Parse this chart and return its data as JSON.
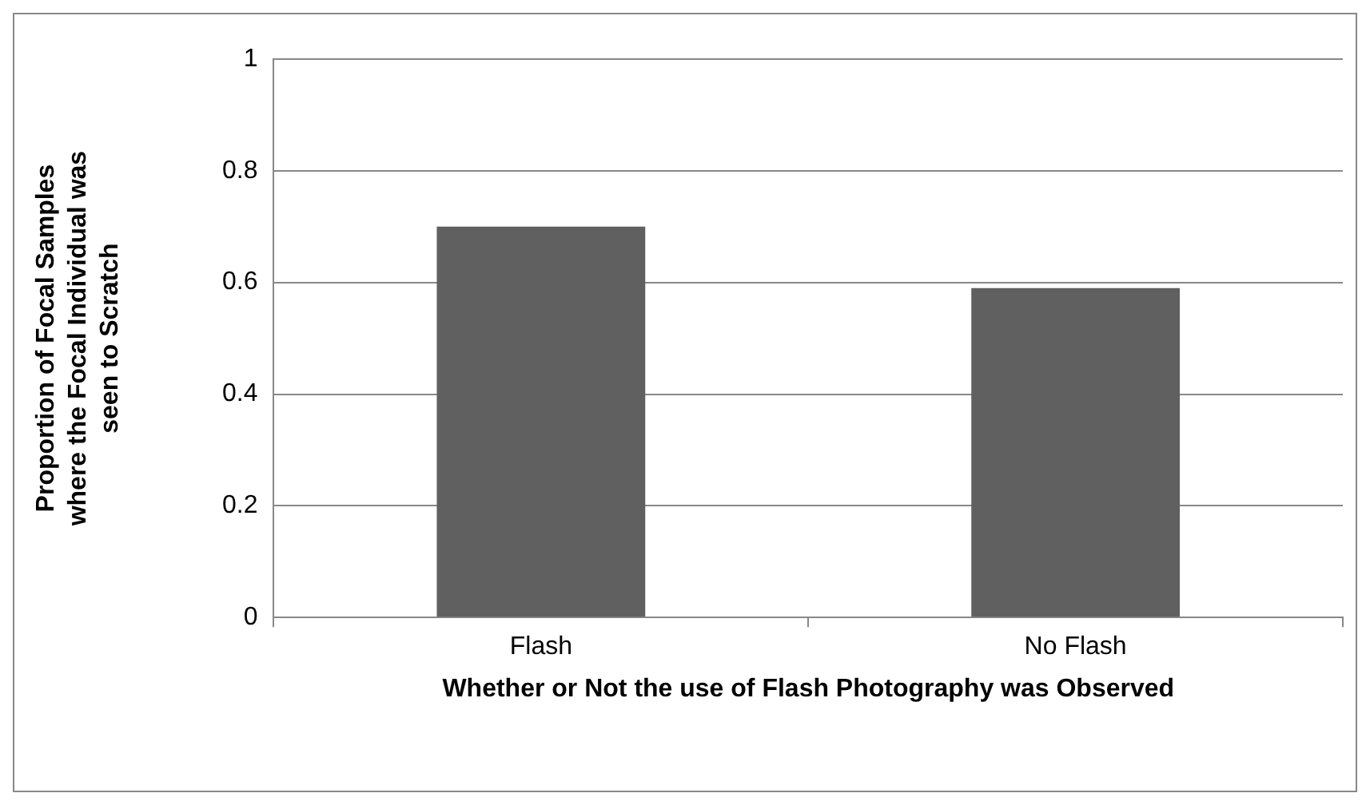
{
  "chart_data": {
    "type": "bar",
    "categories": [
      "Flash",
      "No Flash"
    ],
    "values": [
      0.7,
      0.59
    ],
    "color": "#606060",
    "xlabel": "Whether or Not the use of Flash Photography was Observed",
    "ylabel": "Proportion of Focal Samples where the Focal Individual was seen to Scratch",
    "ylim": [
      0,
      1
    ],
    "yticks": [
      0,
      0.2,
      0.4,
      0.6,
      0.8,
      1
    ],
    "grid": "y",
    "legend": false
  }
}
